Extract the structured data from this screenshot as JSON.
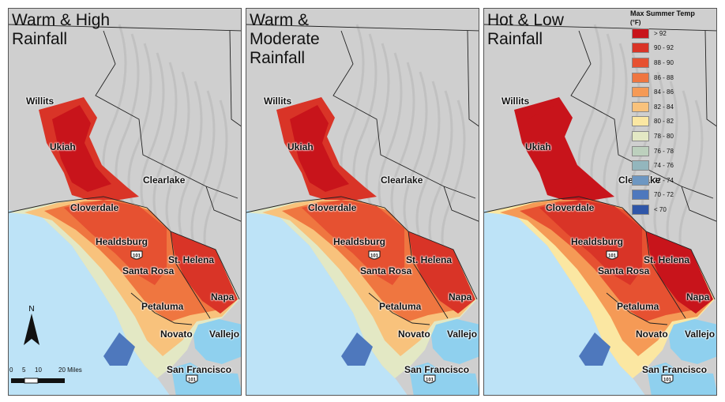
{
  "panels": [
    {
      "title": "Warm & High\nRainfall",
      "scenario": "warm"
    },
    {
      "title": "Warm &\nModerate\nRainfall",
      "scenario": "warm"
    },
    {
      "title": "Hot & Low\nRainfall",
      "scenario": "hot"
    }
  ],
  "cities": {
    "willits": "Willits",
    "ukiah": "Ukiah",
    "clearlake": "Clearlake",
    "cloverdale": "Cloverdale",
    "healdsburg": "Healdsburg",
    "st_helena": "St. Helena",
    "santa_rosa": "Santa Rosa",
    "napa": "Napa",
    "petaluma": "Petaluma",
    "novato": "Novato",
    "vallejo": "Vallejo",
    "san_francisco": "San Francisco"
  },
  "highway_shield": "101",
  "legend": {
    "title": "Max Summer Temp",
    "unit": "(°F)",
    "items": [
      {
        "label": "> 92",
        "color": "#c8141b"
      },
      {
        "label": "90 - 92",
        "color": "#d93427"
      },
      {
        "label": "88 - 90",
        "color": "#e65131"
      },
      {
        "label": "86 - 88",
        "color": "#ef7640"
      },
      {
        "label": "84 - 86",
        "color": "#f59a56"
      },
      {
        "label": "82 - 84",
        "color": "#f8c27c"
      },
      {
        "label": "80 - 82",
        "color": "#fbe7a2"
      },
      {
        "label": "78 - 80",
        "color": "#e3e8c4"
      },
      {
        "label": "76 - 78",
        "color": "#bcd0bd"
      },
      {
        "label": "74 - 76",
        "color": "#93b6bd"
      },
      {
        "label": "72 - 74",
        "color": "#6d97c2"
      },
      {
        "label": "70 - 72",
        "color": "#4e78bd"
      },
      {
        "label": "< 70",
        "color": "#2f56a8"
      }
    ]
  },
  "scale_bar": {
    "ticks": [
      "0",
      "5",
      "10",
      "20 Miles"
    ]
  },
  "north_arrow": {
    "label": "N"
  },
  "colors": {
    "ocean": "#bde3f7",
    "hillshade": "#cfcfcf",
    "bay": "#8fd0ee"
  }
}
